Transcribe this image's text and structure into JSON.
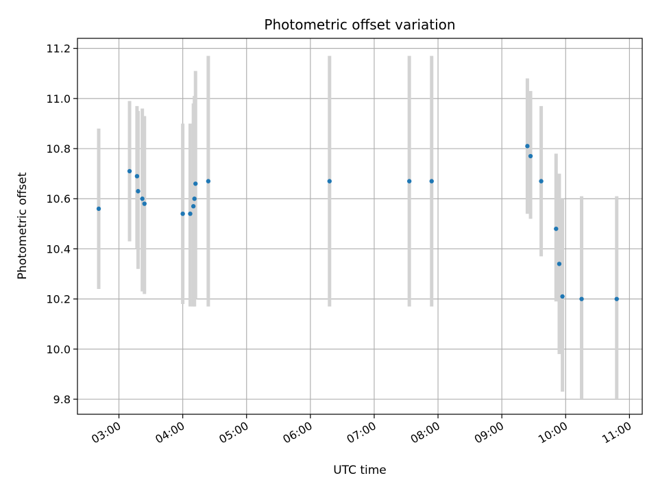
{
  "chart_data": {
    "type": "scatter",
    "title": "Photometric offset variation",
    "xlabel": "UTC time",
    "ylabel": "Photometric offset",
    "xlim": [
      "02:21",
      "11:12"
    ],
    "ylim": [
      9.74,
      11.24
    ],
    "x_ticks": [
      "03:00",
      "04:00",
      "05:00",
      "06:00",
      "07:00",
      "08:00",
      "09:00",
      "10:00",
      "11:00"
    ],
    "y_ticks": [
      "9.8",
      "10.0",
      "10.2",
      "10.4",
      "10.6",
      "10.8",
      "11.0",
      "11.2"
    ],
    "grid": true,
    "point_color": "#1f77b4",
    "errorbar_color": "#d3d3d3",
    "points": [
      {
        "time": "02:41",
        "y": 10.56,
        "err_low": 10.24,
        "err_high": 10.88
      },
      {
        "time": "03:10",
        "y": 10.71,
        "err_low": 10.43,
        "err_high": 10.99
      },
      {
        "time": "03:17",
        "y": 10.69,
        "err_low": 10.4,
        "err_high": 10.97
      },
      {
        "time": "03:18",
        "y": 10.63,
        "err_low": 10.32,
        "err_high": 10.95
      },
      {
        "time": "03:22",
        "y": 10.6,
        "err_low": 10.23,
        "err_high": 10.96
      },
      {
        "time": "03:24",
        "y": 10.58,
        "err_low": 10.22,
        "err_high": 10.93
      },
      {
        "time": "04:00",
        "y": 10.54,
        "err_low": 10.18,
        "err_high": 10.9
      },
      {
        "time": "04:07",
        "y": 10.54,
        "err_low": 10.17,
        "err_high": 10.9
      },
      {
        "time": "04:10",
        "y": 10.57,
        "err_low": 10.17,
        "err_high": 10.98
      },
      {
        "time": "04:11",
        "y": 10.6,
        "err_low": 10.17,
        "err_high": 11.01
      },
      {
        "time": "04:12",
        "y": 10.66,
        "err_low": 10.2,
        "err_high": 11.11
      },
      {
        "time": "04:24",
        "y": 10.67,
        "err_low": 10.17,
        "err_high": 11.17
      },
      {
        "time": "06:18",
        "y": 10.67,
        "err_low": 10.17,
        "err_high": 11.17
      },
      {
        "time": "07:33",
        "y": 10.67,
        "err_low": 10.17,
        "err_high": 11.17
      },
      {
        "time": "07:54",
        "y": 10.67,
        "err_low": 10.17,
        "err_high": 11.17
      },
      {
        "time": "09:24",
        "y": 10.81,
        "err_low": 10.54,
        "err_high": 11.08
      },
      {
        "time": "09:27",
        "y": 10.77,
        "err_low": 10.52,
        "err_high": 11.03
      },
      {
        "time": "09:37",
        "y": 10.67,
        "err_low": 10.37,
        "err_high": 10.97
      },
      {
        "time": "09:51",
        "y": 10.48,
        "err_low": 10.19,
        "err_high": 10.78
      },
      {
        "time": "09:54",
        "y": 10.34,
        "err_low": 9.98,
        "err_high": 10.7
      },
      {
        "time": "09:57",
        "y": 10.21,
        "err_low": 9.83,
        "err_high": 10.6
      },
      {
        "time": "10:15",
        "y": 10.2,
        "err_low": 9.8,
        "err_high": 10.61
      },
      {
        "time": "10:48",
        "y": 10.2,
        "err_low": 9.8,
        "err_high": 10.61
      }
    ]
  }
}
